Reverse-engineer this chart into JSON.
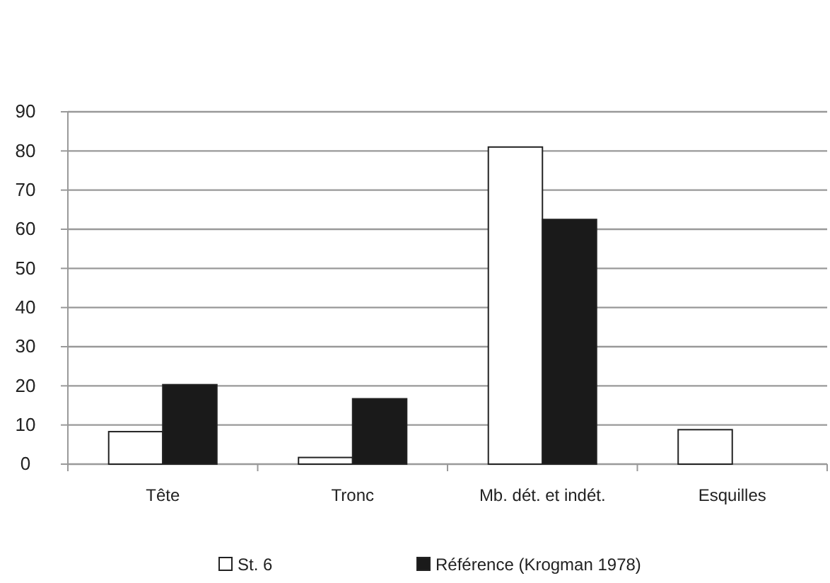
{
  "chart_data": {
    "type": "bar",
    "categories": [
      "Tête",
      "Tronc",
      "Mb. dét. et indét.",
      "Esquilles"
    ],
    "series": [
      {
        "name": "St. 6",
        "color": "#ffffff",
        "values": [
          8.3,
          1.7,
          81,
          8.8
        ]
      },
      {
        "name": "Référence (Krogman 1978)",
        "color": "#1a1a1a",
        "values": [
          20.3,
          16.7,
          62.5,
          null
        ]
      }
    ],
    "ylim": [
      0,
      90
    ],
    "yticks": [
      0,
      10,
      20,
      30,
      40,
      50,
      60,
      70,
      80,
      90
    ],
    "grid": "y",
    "legend": "bottom"
  }
}
